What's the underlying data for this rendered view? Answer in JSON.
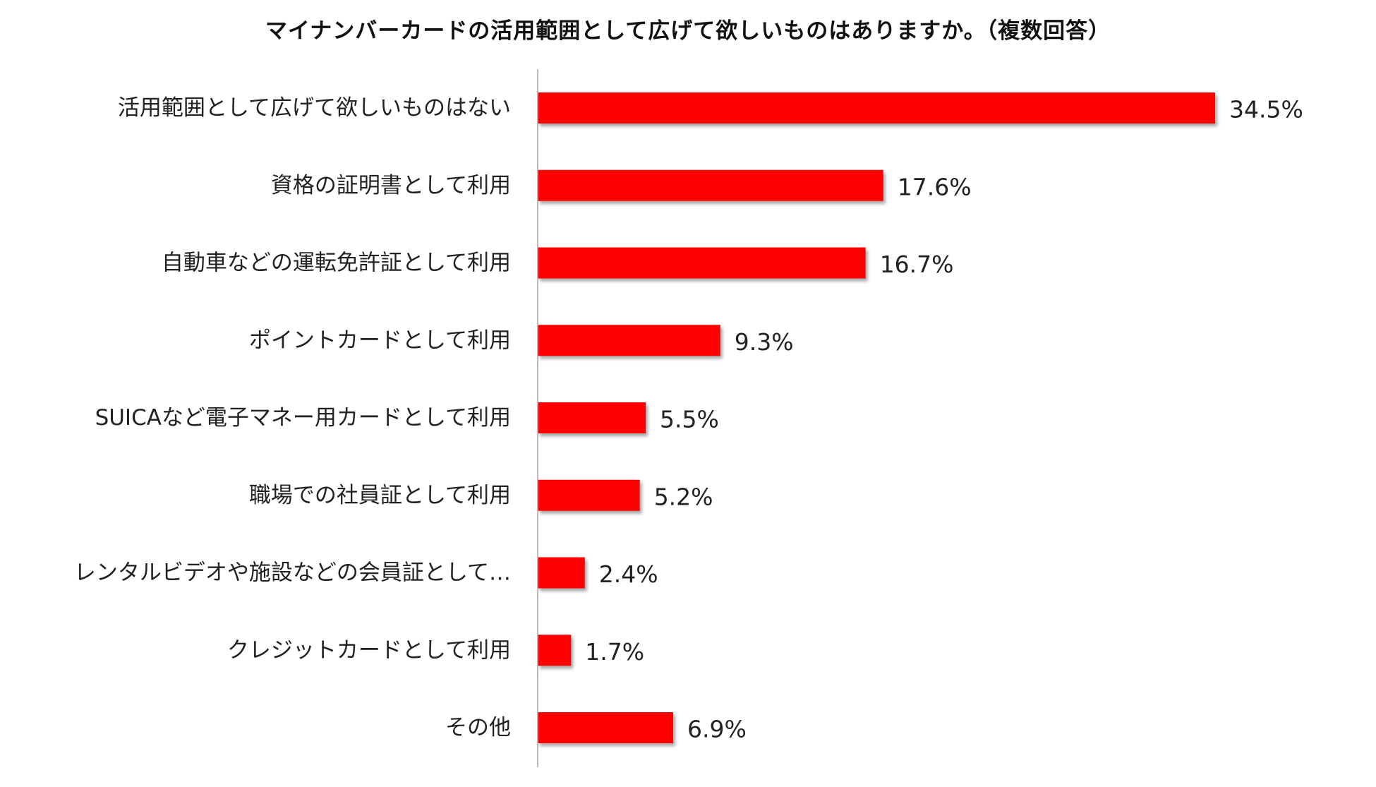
{
  "chart_data": {
    "type": "bar",
    "orientation": "horizontal",
    "title": "マイナンバーカードの活用範囲として広げて欲しいものはありますか。（複数回答）",
    "categories": [
      "活用範囲として広げて欲しいものはない",
      "資格の証明書として利用",
      "自動車などの運転免許証として利用",
      "ポイントカードとして利用",
      "SUICAなど電子マネー用カードとして利用",
      "職場での社員証として利用",
      "レンタルビデオや施設などの会員証として…",
      "クレジットカードとして利用",
      "その他"
    ],
    "values": [
      34.5,
      17.6,
      16.7,
      9.3,
      5.5,
      5.2,
      2.4,
      1.7,
      6.9
    ],
    "value_labels": [
      "34.5%",
      "17.6%",
      "16.7%",
      "9.3%",
      "5.5%",
      "5.2%",
      "2.4%",
      "1.7%",
      "6.9%"
    ],
    "unit": "%",
    "xlim": [
      0,
      34.5
    ],
    "grid": false,
    "legend": "none",
    "colors": {
      "bar": "#ff0000",
      "axis": "#a6a6a6"
    }
  }
}
